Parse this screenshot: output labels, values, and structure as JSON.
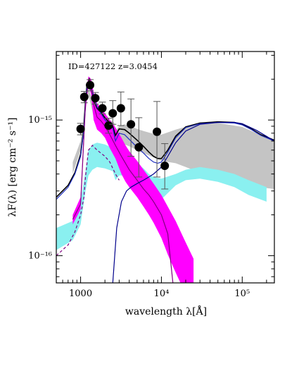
{
  "chart_data": {
    "type": "scatter",
    "title": "",
    "annotation": "ID=427122 z=3.0454",
    "xlabel": "wavelength λ[Å]",
    "ylabel": "λF(λ) [erg cm⁻² s⁻¹]",
    "x_scale": "log",
    "y_scale": "log",
    "xlim": [
      500,
      250000
    ],
    "ylim": [
      6.3e-17,
      3.2e-15
    ],
    "x_ticks": [
      {
        "value": 1000,
        "label": "1000"
      },
      {
        "value": 10000,
        "label": "10⁴"
      },
      {
        "value": 100000,
        "label": "10⁵"
      }
    ],
    "y_ticks": [
      {
        "value": 1e-16,
        "label": "10⁻¹⁶"
      },
      {
        "value": 1e-15,
        "label": "10⁻¹⁵"
      }
    ],
    "colors": {
      "total_band": "#c4c4c4",
      "total_line": "#000000",
      "starburst_band": "#ff00ff",
      "starburst_line": "#800080",
      "host_band": "#8af0f0",
      "host_line": "#2030c0",
      "agn_line": "#00008b",
      "points": "#000000",
      "errorbars": "#555555"
    },
    "points": [
      {
        "x": 1000,
        "y": 8.6e-16,
        "yerr_lo": 8.2e-17,
        "yerr_hi": 8.5e-17
      },
      {
        "x": 1110,
        "y": 1.48e-15,
        "yerr_lo": 1.4e-16,
        "yerr_hi": 1.45e-16
      },
      {
        "x": 1310,
        "y": 1.81e-15,
        "yerr_lo": 1.7e-16,
        "yerr_hi": 1.75e-16
      },
      {
        "x": 1520,
        "y": 1.45e-15,
        "yerr_lo": 1.4e-16,
        "yerr_hi": 1.45e-16
      },
      {
        "x": 1860,
        "y": 1.22e-15,
        "yerr_lo": 1.1e-16,
        "yerr_hi": 1.35e-16
      },
      {
        "x": 2220,
        "y": 9.1e-16,
        "yerr_lo": 1.1e-16,
        "yerr_hi": 1.2e-16
      },
      {
        "x": 2500,
        "y": 1.12e-15,
        "yerr_lo": 1.9e-16,
        "yerr_hi": 2.7e-16
      },
      {
        "x": 3150,
        "y": 1.22e-15,
        "yerr_lo": 3.1e-16,
        "yerr_hi": 3.9e-16
      },
      {
        "x": 4200,
        "y": 9.3e-16,
        "yerr_lo": 3.9e-16,
        "yerr_hi": 5e-16
      },
      {
        "x": 5250,
        "y": 6.3e-16,
        "yerr_lo": 2.5e-16,
        "yerr_hi": 4.1e-16
      },
      {
        "x": 8800,
        "y": 8.2e-16,
        "yerr_lo": 4.4e-16,
        "yerr_hi": 5.5e-16
      },
      {
        "x": 11000,
        "y": 4.6e-16,
        "yerr_lo": 1.5e-16,
        "yerr_hi": 2.1e-16
      }
    ],
    "series": [
      {
        "kind": "band",
        "color_key": "total_band",
        "x": [
          800,
          1000,
          1150,
          1200,
          1300,
          1450,
          1600,
          1800,
          2000,
          2300,
          2600,
          2700,
          3000,
          3500,
          4000,
          5000,
          6000,
          8000,
          10000,
          15000,
          20000,
          30000,
          50000,
          100000,
          250000
        ],
        "lower": [
          4e-16,
          6e-16,
          1.25e-15,
          1.65e-15,
          1.4e-15,
          1.05e-15,
          9.8e-16,
          8.8e-16,
          7.8e-16,
          7.2e-16,
          6.8e-16,
          5.8e-16,
          6.4e-16,
          6.6e-16,
          6.4e-16,
          6e-16,
          5.7e-16,
          5.3e-16,
          5e-16,
          4.8e-16,
          4.5e-16,
          4.1e-16,
          3.6e-16,
          3.3e-16,
          3.1e-16
        ],
        "upper": [
          4.9e-16,
          7e-16,
          1.4e-15,
          1.8e-15,
          1.6e-15,
          1.3e-15,
          1.22e-15,
          1.12e-15,
          1.05e-15,
          1e-15,
          9.6e-16,
          8.3e-16,
          9e-16,
          9.3e-16,
          9.1e-16,
          8.6e-16,
          8.3e-16,
          7.9e-16,
          7.8e-16,
          8.5e-16,
          8.9e-16,
          9.3e-16,
          9.5e-16,
          8.9e-16,
          7e-16
        ]
      },
      {
        "kind": "band",
        "color_key": "host_band",
        "x": [
          500,
          800,
          1000,
          1150,
          1250,
          1400,
          1600,
          2000,
          2500,
          2700,
          3000,
          3500,
          4000,
          5000,
          6000,
          7000,
          8000,
          10000,
          15000,
          20000,
          30000,
          50000,
          80000,
          120000,
          200000
        ],
        "lower": [
          1.1e-16,
          1.3e-16,
          1.7e-16,
          3e-16,
          3.9e-16,
          4.3e-16,
          4.5e-16,
          4.4e-16,
          4.2e-16,
          3.6e-16,
          3.9e-16,
          3.9e-16,
          3.7e-16,
          3.3e-16,
          3e-16,
          2.6e-16,
          2.4e-16,
          2.6e-16,
          3.3e-16,
          3.6e-16,
          3.7e-16,
          3.5e-16,
          3.2e-16,
          2.8e-16,
          2.5e-16
        ],
        "upper": [
          1.6e-16,
          1.8e-16,
          2.5e-16,
          4.2e-16,
          6e-16,
          6.6e-16,
          6.8e-16,
          6.6e-16,
          6.2e-16,
          5.3e-16,
          5.7e-16,
          5.6e-16,
          5.3e-16,
          4.8e-16,
          4.4e-16,
          4e-16,
          3.8e-16,
          3.7e-16,
          4e-16,
          4.3e-16,
          4.5e-16,
          4.3e-16,
          4e-16,
          3.6e-16,
          3.2e-16
        ]
      },
      {
        "kind": "band",
        "color_key": "starburst_band",
        "x": [
          800,
          1000,
          1150,
          1250,
          1350,
          1450,
          1600,
          1800,
          2000,
          2300,
          2700,
          3200,
          3600,
          4000,
          5000,
          6000,
          7000,
          8000,
          10000,
          12000,
          15000,
          20000,
          25000
        ],
        "lower": [
          1.7e-16,
          2.2e-16,
          1.15e-15,
          1.8e-15,
          1.55e-15,
          1e-15,
          8.5e-16,
          8e-16,
          7.4e-16,
          6.2e-16,
          5.2e-16,
          4e-16,
          3.5e-16,
          3.2e-16,
          2.7e-16,
          2.3e-16,
          2e-16,
          1.75e-16,
          1.35e-16,
          1.02e-16,
          7.5e-17,
          5.2e-17,
          4e-17
        ],
        "upper": [
          2e-16,
          2.7e-16,
          1.45e-15,
          2.1e-15,
          2e-15,
          1.6e-15,
          1.32e-15,
          1.22e-15,
          1.12e-15,
          1e-15,
          8.8e-16,
          7.4e-16,
          6.5e-16,
          5.9e-16,
          5e-16,
          4.3e-16,
          3.8e-16,
          3.4e-16,
          2.8e-16,
          2.3e-16,
          1.8e-16,
          1.25e-16,
          9.5e-17
        ]
      },
      {
        "kind": "line",
        "color_key": "total_line",
        "x": [
          500,
          700,
          850,
          1000,
          1100,
          1150,
          1200,
          1280,
          1350,
          1450,
          1600,
          1800,
          2000,
          2300,
          2500,
          2700,
          3000,
          3500,
          4000,
          5000,
          6000,
          7000,
          8000,
          9000,
          10000,
          12000,
          15000,
          20000,
          30000,
          50000,
          80000,
          100000,
          130000,
          170000,
          200000,
          250000
        ],
        "y": [
          2.7e-16,
          3.3e-16,
          4.1e-16,
          5.6e-16,
          8.8e-16,
          1.4e-15,
          1.82e-15,
          2e-15,
          1.75e-15,
          1.4e-15,
          1.22e-15,
          1.13e-15,
          1.04e-15,
          9.5e-16,
          9e-16,
          7.7e-16,
          8.6e-16,
          8.5e-16,
          8e-16,
          7.1e-16,
          6.4e-16,
          5.8e-16,
          5.4e-16,
          5.2e-16,
          5.2e-16,
          6e-16,
          7.6e-16,
          8.9e-16,
          9.5e-16,
          9.7e-16,
          9.6e-16,
          9.3e-16,
          8.6e-16,
          7.8e-16,
          7.5e-16,
          7.1e-16
        ]
      },
      {
        "kind": "line",
        "color_key": "host_line",
        "x": [
          500,
          700,
          850,
          1000,
          1100,
          1150,
          1200,
          1300,
          1400,
          1600,
          2000,
          2500,
          2700,
          3000,
          3500,
          4000,
          5000,
          6000,
          7000,
          8000,
          9000,
          10000,
          12000,
          15000,
          20000,
          30000,
          50000,
          80000,
          100000,
          130000,
          170000,
          200000,
          250000
        ],
        "y": [
          2.6e-16,
          3.2e-16,
          4e-16,
          5.4e-16,
          8.5e-16,
          1.35e-15,
          1.75e-15,
          1.9e-15,
          1.6e-15,
          1.25e-15,
          1e-15,
          8.7e-16,
          7e-16,
          8e-16,
          7.8e-16,
          7.2e-16,
          6.3e-16,
          5.7e-16,
          5.2e-16,
          4.9e-16,
          4.8e-16,
          4.9e-16,
          5.8e-16,
          7.4e-16,
          8.8e-16,
          9.4e-16,
          9.6e-16,
          9.5e-16,
          9.2e-16,
          8.5e-16,
          7.7e-16,
          7.4e-16,
          7e-16
        ]
      },
      {
        "kind": "line",
        "color_key": "starburst_line",
        "x": [
          800,
          1000,
          1150,
          1250,
          1350,
          1450,
          1600,
          1800,
          2000,
          2300,
          2700,
          3200,
          4000,
          5000,
          6000,
          7000,
          8000,
          10000,
          12000,
          14000
        ],
        "y": [
          1.85e-16,
          2.4e-16,
          1.3e-15,
          1.95e-15,
          1.75e-15,
          1.3e-15,
          1.05e-15,
          9.8e-16,
          9e-16,
          7.8e-16,
          6.5e-16,
          5.4e-16,
          4.3e-16,
          3.6e-16,
          3.1e-16,
          2.8e-16,
          2.5e-16,
          2e-16,
          1.45e-16,
          6e-17
        ]
      },
      {
        "kind": "line",
        "color_key": "starburst_line",
        "style": "dashed",
        "x": [
          500,
          700,
          850,
          1000,
          1100,
          1150,
          1250,
          1400,
          1600,
          2000,
          2300,
          2700,
          3000
        ],
        "y": [
          1e-16,
          1.2e-16,
          1.5e-16,
          2e-16,
          2.7e-16,
          3.8e-16,
          6e-16,
          6.5e-16,
          6e-16,
          5.4e-16,
          4.9e-16,
          4e-16,
          3.6e-16
        ]
      },
      {
        "kind": "line",
        "color_key": "agn_line",
        "x": [
          2500,
          2800,
          3200,
          3700,
          4200,
          5000,
          6000,
          7000,
          8000,
          10000,
          12000,
          15000,
          20000,
          30000,
          50000,
          80000,
          100000,
          150000,
          250000
        ],
        "y": [
          6.3e-17,
          1.6e-16,
          2.5e-16,
          3e-16,
          3.2e-16,
          3.4e-16,
          3.6e-16,
          3.8e-16,
          4e-16,
          4.5e-16,
          5.4e-16,
          6.8e-16,
          8.3e-16,
          9.3e-16,
          9.6e-16,
          9.6e-16,
          9.4e-16,
          8.4e-16,
          7e-16
        ]
      }
    ]
  }
}
